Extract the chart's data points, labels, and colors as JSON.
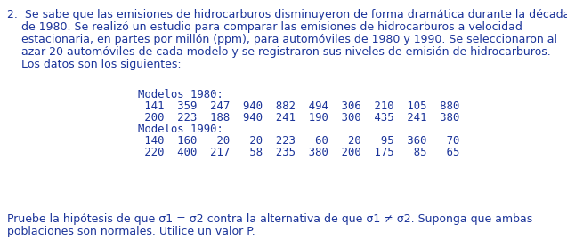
{
  "background_color": "#ffffff",
  "text_color": "#1a3399",
  "line1": "2.  Se sabe que las emisiones de hidrocarburos disminuyeron de forma dramática durante la década",
  "line2": "    de 1980. Se realizó un estudio para comparar las emisiones de hidrocarburos a velocidad",
  "line3": "    estacionaria, en partes por millón (ppm), para automóviles de 1980 y 1990. Se seleccionaron al",
  "line4": "    azar 20 automóviles de cada modelo y se registraron sus niveles de emisión de hidrocarburos.",
  "line5": "    Los datos son los siguientes:",
  "label1980": "Modelos 1980:",
  "data1980_row1": " 141  359  247  940  882  494  306  210  105  880",
  "data1980_row2": " 200  223  188  940  241  190  300  435  241  380",
  "label1990": "Modelos 1990:",
  "data1990_row1": " 140  160   20   20  223   60   20   95  360   70",
  "data1990_row2": " 220  400  217   58  235  380  200  175   85   65",
  "footer1": "Pruebe la hipótesis de que σ1 = σ2 contra la alternativa de que σ1 ≠ σ2. Suponga que ambas",
  "footer2": "poblaciones son normales. Utilice un valor P.",
  "font_size_body": 9.0,
  "font_size_mono": 8.8,
  "fig_width": 6.37,
  "fig_height": 2.79,
  "dpi": 100
}
